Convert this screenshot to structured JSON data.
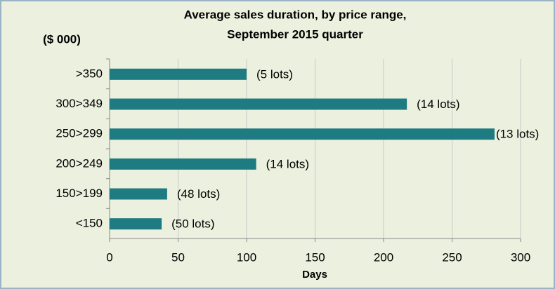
{
  "chart_data": {
    "type": "hbar",
    "title": [
      "Average sales duration, by  price range,",
      "September 2015 quarter"
    ],
    "y_axis_label": "($ 000)",
    "x_axis_label": "Days",
    "categories": [
      ">350",
      "300>349",
      "250>299",
      "200>249",
      "150>199",
      "<150"
    ],
    "values": [
      100,
      217,
      281,
      107,
      42,
      38
    ],
    "bar_labels": [
      "(5 lots)",
      "(14 lots)",
      "(13 lots)",
      "(14 lots)",
      "(48 lots)",
      "(50 lots)"
    ],
    "color": "#1f7b82",
    "xlim": [
      0,
      300
    ],
    "xticks": [
      0,
      50,
      100,
      150,
      200,
      250,
      300
    ],
    "grid": true
  }
}
